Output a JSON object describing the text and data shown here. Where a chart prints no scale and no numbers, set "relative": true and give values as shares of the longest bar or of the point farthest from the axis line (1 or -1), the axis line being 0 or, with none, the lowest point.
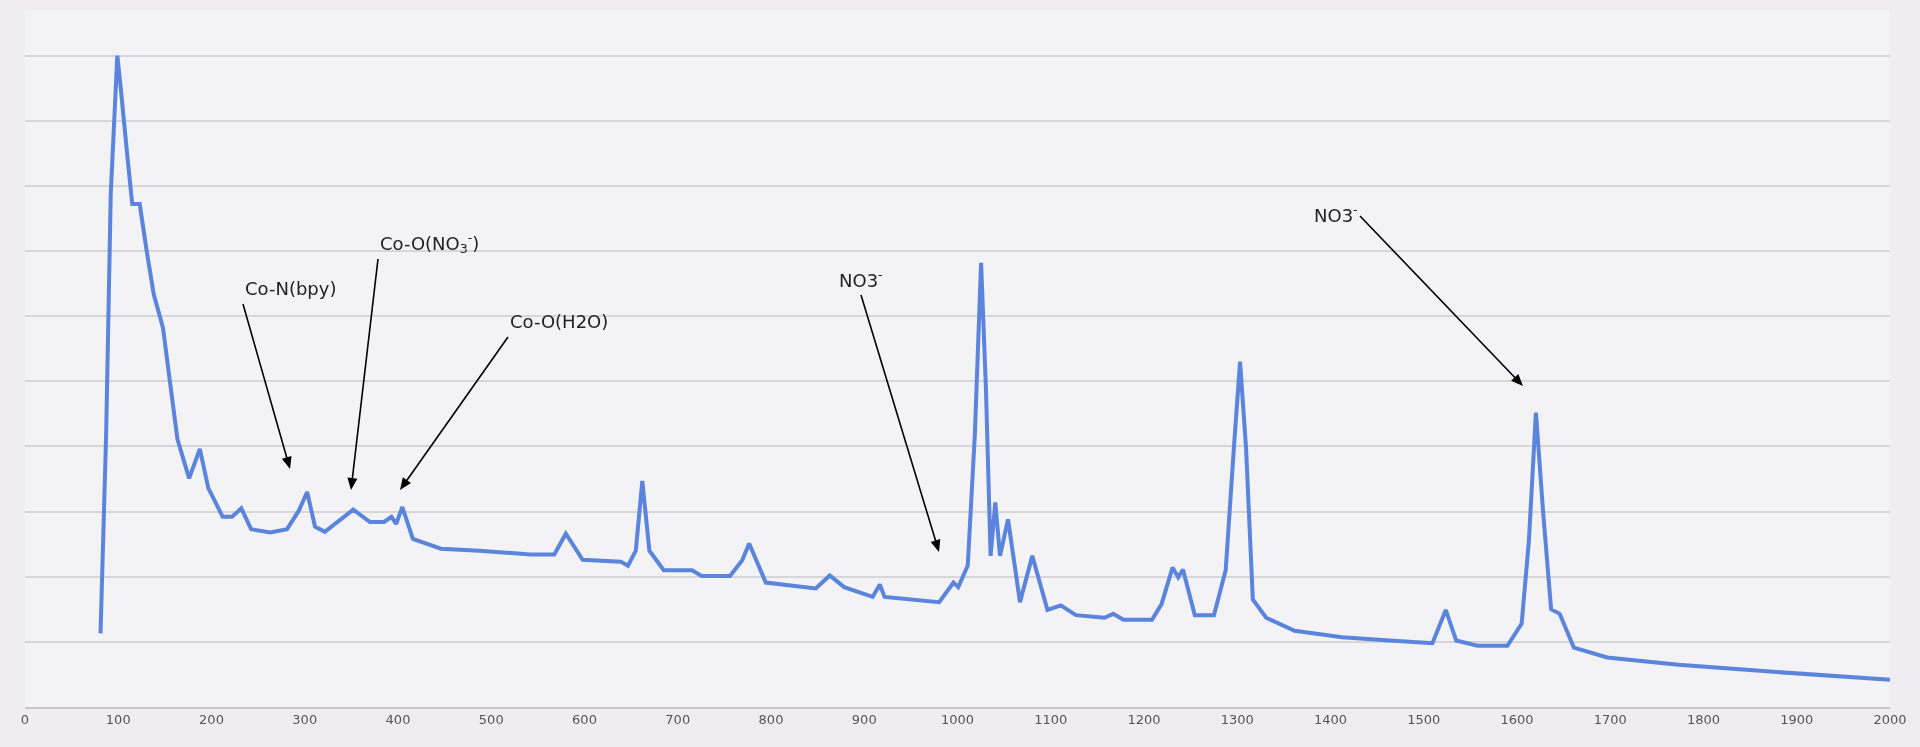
{
  "chart_data": {
    "type": "line",
    "relative": true,
    "grid": "y",
    "marker": "none",
    "line_style": "solid",
    "xlim": [
      0,
      2000
    ],
    "xticks": [
      0,
      100,
      200,
      300,
      400,
      500,
      600,
      700,
      800,
      900,
      1000,
      1100,
      1200,
      1300,
      1400,
      1500,
      1600,
      1700,
      1800,
      1900,
      2000
    ],
    "x": [
      81,
      87,
      92,
      99,
      102.4,
      110,
      115,
      123,
      130.4,
      138,
      148,
      156,
      163.5,
      176,
      187.5,
      196.6,
      212,
      222,
      232,
      242.5,
      263,
      281,
      293.5,
      302.6,
      311,
      321.5,
      352,
      370,
      385,
      393,
      398,
      404.6,
      416,
      446,
      487,
      542,
      567.6,
      580,
      598,
      639,
      646.6,
      655,
      662,
      669.6,
      685,
      715.4,
      725.6,
      756,
      769,
      776.6,
      794.4,
      848,
      863,
      878.5,
      909,
      916.7,
      921.8,
      980.4,
      995.7,
      1000.8,
      1011,
      1018.6,
      1025.3,
      1030.4,
      1035.5,
      1040.5,
      1045.6,
      1054.2,
      1067,
      1080.2,
      1096.5,
      1110.8,
      1127,
      1157.7,
      1167,
      1178,
      1208.6,
      1218.8,
      1230.6,
      1236.7,
      1241.8,
      1254.5,
      1275,
      1287.6,
      1296.3,
      1303,
      1309.5,
      1316.7,
      1331,
      1361.5,
      1412.5,
      1463.5,
      1509.3,
      1523.6,
      1534.8,
      1557.7,
      1589.7,
      1605,
      1612.7,
      1620.3,
      1628,
      1636.6,
      1645.8,
      1661,
      1696.8,
      1773.2,
      1875,
      2000
    ],
    "series": [
      {
        "color": "#5b84dc",
        "values": [
          0.113,
          0.418,
          0.79,
          1,
          0.954,
          0.842,
          0.772,
          0.772,
          0.701,
          0.634,
          0.582,
          0.493,
          0.411,
          0.351,
          0.396,
          0.336,
          0.292,
          0.292,
          0.305,
          0.273,
          0.268,
          0.273,
          0.301,
          0.33,
          0.277,
          0.269,
          0.303,
          0.284,
          0.284,
          0.292,
          0.281,
          0.307,
          0.258,
          0.243,
          0.24,
          0.234,
          0.234,
          0.266,
          0.226,
          0.223,
          0.217,
          0.24,
          0.347,
          0.24,
          0.21,
          0.21,
          0.201,
          0.201,
          0.225,
          0.251,
          0.191,
          0.182,
          0.202,
          0.184,
          0.169,
          0.188,
          0.169,
          0.161,
          0.191,
          0.184,
          0.217,
          0.418,
          0.682,
          0.493,
          0.232,
          0.314,
          0.232,
          0.288,
          0.161,
          0.232,
          0.149,
          0.156,
          0.141,
          0.137,
          0.143,
          0.134,
          0.134,
          0.158,
          0.214,
          0.199,
          0.211,
          0.141,
          0.141,
          0.21,
          0.396,
          0.53,
          0.396,
          0.165,
          0.137,
          0.117,
          0.107,
          0.102,
          0.098,
          0.149,
          0.102,
          0.094,
          0.094,
          0.128,
          0.254,
          0.452,
          0.299,
          0.15,
          0.143,
          0.091,
          0.076,
          0.065,
          0.054,
          0.042
        ]
      }
    ],
    "annotations": [
      "Co-N(bpy)",
      "Co-O(NO$_{3}$$^{-}$)",
      "Co-O(H2O)",
      "NO3$^{-}$",
      "NO3$^{-}$"
    ]
  }
}
